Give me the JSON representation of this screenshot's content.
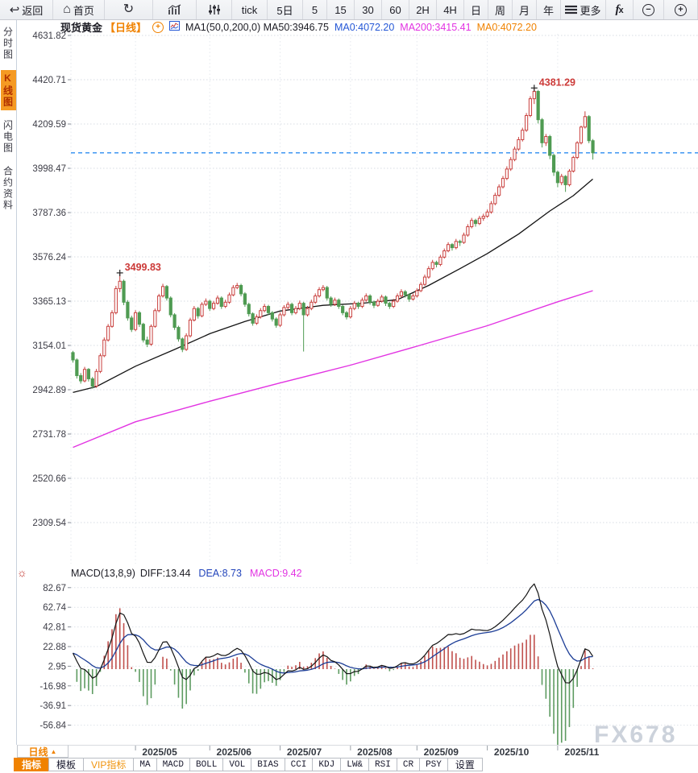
{
  "app": {
    "accent": "#f08200",
    "watermark": "FX678"
  },
  "toolbar": {
    "items": [
      {
        "name": "back-button",
        "icon": "back-icon",
        "label": "返回"
      },
      {
        "name": "home-button",
        "icon": "home-icon",
        "label": "首页"
      },
      {
        "name": "refresh-button",
        "icon": "refresh-icon",
        "label": ""
      },
      {
        "name": "kline-style-button",
        "icon": "kline-chart-icon",
        "label": ""
      },
      {
        "name": "indicator-adjust-button",
        "icon": "sliders-icon",
        "label": ""
      },
      {
        "name": "period-tick-button",
        "icon": "",
        "label": "tick"
      },
      {
        "name": "period-5d-button",
        "icon": "",
        "label": "5日"
      },
      {
        "name": "period-5-button",
        "icon": "",
        "label": "5"
      },
      {
        "name": "period-15-button",
        "icon": "",
        "label": "15"
      },
      {
        "name": "period-30-button",
        "icon": "",
        "label": "30"
      },
      {
        "name": "period-60-button",
        "icon": "",
        "label": "60"
      },
      {
        "name": "period-2h-button",
        "icon": "",
        "label": "2H"
      },
      {
        "name": "period-4h-button",
        "icon": "",
        "label": "4H"
      },
      {
        "name": "period-day-button",
        "icon": "",
        "label": "日"
      },
      {
        "name": "period-week-button",
        "icon": "",
        "label": "周"
      },
      {
        "name": "period-month-button",
        "icon": "",
        "label": "月"
      },
      {
        "name": "period-year-button",
        "icon": "",
        "label": "年"
      },
      {
        "name": "more-button",
        "icon": "more-icon",
        "label": "更多"
      },
      {
        "name": "formula-button",
        "icon": "fx-icon",
        "label": ""
      },
      {
        "name": "zoom-out-button",
        "icon": "zoom-out-icon",
        "label": ""
      },
      {
        "name": "zoom-in-button",
        "icon": "zoom-in-icon",
        "label": ""
      }
    ]
  },
  "sidebar": {
    "items": [
      {
        "label": "分时图",
        "active": false
      },
      {
        "label": "K线图",
        "active": true
      },
      {
        "label": "闪电图",
        "active": false
      },
      {
        "label": "合约资料",
        "active": false
      }
    ]
  },
  "chart_header": {
    "symbol": "现货黄金",
    "period": "【日线】",
    "plus": "+",
    "ma_config": "MA1(50,0,200,0)  MA50:3946.75",
    "ma0_blue": "MA0:4072.20",
    "ma200": "MA200:3415.41",
    "ma0_orange": "MA0:4072.20"
  },
  "macd_header": {
    "gear": "☼",
    "formula": "MACD(13,8,9)",
    "diff_label": "DIFF:13.44",
    "dea_label": "DEA:8.73",
    "macd_label": "MACD:9.42"
  },
  "bottom": {
    "period_label": "日线",
    "period_arrow": "▲",
    "tabs": [
      {
        "label": "指标",
        "variant": "active"
      },
      {
        "label": "模板",
        "variant": "cjk"
      },
      {
        "label": "VIP指标",
        "variant": "vip"
      },
      {
        "label": "MA",
        "variant": "mono"
      },
      {
        "label": "MACD",
        "variant": "mono"
      },
      {
        "label": "BOLL",
        "variant": "mono"
      },
      {
        "label": "VOL",
        "variant": "mono"
      },
      {
        "label": "BIAS",
        "variant": "mono"
      },
      {
        "label": "CCI",
        "variant": "mono"
      },
      {
        "label": "KDJ",
        "variant": "mono"
      },
      {
        "label": "LW&",
        "variant": "mono"
      },
      {
        "label": "RSI",
        "variant": "mono"
      },
      {
        "label": "CR",
        "variant": "mono"
      },
      {
        "label": "PSY",
        "variant": "mono"
      },
      {
        "label": "设置",
        "variant": "cjk"
      }
    ]
  },
  "chart_data": [
    {
      "type": "candlestick",
      "title": "现货黄金 日线",
      "y_ticks": [
        4631.82,
        4420.71,
        4209.59,
        3998.47,
        3787.36,
        3576.24,
        3365.13,
        3154.01,
        2942.89,
        2731.78,
        2520.66,
        2309.54
      ],
      "x_labels": [
        "2025/05",
        "2025/06",
        "2025/07",
        "2025/08",
        "2025/09",
        "2025/10",
        "2025/11"
      ],
      "month_start_indices": [
        16,
        35,
        53,
        71,
        88,
        106,
        124
      ],
      "current_price_line": 4072.2,
      "colors": {
        "up": "#c9403e",
        "down": "#4f9b52",
        "ma50": "#141414",
        "ma200": "#e233e2",
        "price_line": "#2d8cf0",
        "annotation": "#cc3a38"
      },
      "annotations": [
        {
          "text": "3499.83",
          "index": 12,
          "price": 3499.83
        },
        {
          "text": "4381.29",
          "index": 118,
          "price": 4381.29
        }
      ],
      "candles": [
        [
          3120,
          3128,
          3072,
          3085
        ],
        [
          3085,
          3092,
          2996,
          3010
        ],
        [
          3010,
          3022,
          2972,
          2985
        ],
        [
          2985,
          3052,
          2978,
          3040
        ],
        [
          3040,
          3046,
          2982,
          2995
        ],
        [
          2995,
          3004,
          2948,
          2960
        ],
        [
          2960,
          3042,
          2952,
          3030
        ],
        [
          3030,
          3116,
          3022,
          3105
        ],
        [
          3105,
          3192,
          3098,
          3180
        ],
        [
          3180,
          3256,
          3172,
          3245
        ],
        [
          3245,
          3322,
          3238,
          3310
        ],
        [
          3310,
          3438,
          3302,
          3425
        ],
        [
          3425,
          3499.83,
          3408,
          3460
        ],
        [
          3460,
          3468,
          3346,
          3360
        ],
        [
          3360,
          3370,
          3272,
          3285
        ],
        [
          3285,
          3296,
          3218,
          3230
        ],
        [
          3230,
          3322,
          3222,
          3310
        ],
        [
          3310,
          3318,
          3242,
          3255
        ],
        [
          3255,
          3262,
          3168,
          3180
        ],
        [
          3180,
          3196,
          3146,
          3160
        ],
        [
          3160,
          3254,
          3152,
          3245
        ],
        [
          3245,
          3330,
          3238,
          3320
        ],
        [
          3320,
          3400,
          3312,
          3390
        ],
        [
          3390,
          3448,
          3382,
          3435
        ],
        [
          3435,
          3442,
          3368,
          3380
        ],
        [
          3380,
          3388,
          3288,
          3300
        ],
        [
          3300,
          3308,
          3228,
          3240
        ],
        [
          3240,
          3248,
          3172,
          3185
        ],
        [
          3185,
          3192,
          3122,
          3135
        ],
        [
          3135,
          3212,
          3128,
          3200
        ],
        [
          3200,
          3286,
          3192,
          3275
        ],
        [
          3275,
          3342,
          3268,
          3330
        ],
        [
          3330,
          3338,
          3282,
          3295
        ],
        [
          3295,
          3360,
          3288,
          3350
        ],
        [
          3350,
          3378,
          3342,
          3365
        ],
        [
          3365,
          3372,
          3318,
          3330
        ],
        [
          3330,
          3366,
          3322,
          3355
        ],
        [
          3355,
          3392,
          3348,
          3380
        ],
        [
          3380,
          3388,
          3328,
          3340
        ],
        [
          3340,
          3372,
          3332,
          3360
        ],
        [
          3360,
          3406,
          3352,
          3395
        ],
        [
          3395,
          3442,
          3388,
          3430
        ],
        [
          3430,
          3452,
          3422,
          3440
        ],
        [
          3440,
          3448,
          3388,
          3400
        ],
        [
          3400,
          3408,
          3338,
          3350
        ],
        [
          3350,
          3358,
          3292,
          3305
        ],
        [
          3305,
          3312,
          3248,
          3260
        ],
        [
          3260,
          3302,
          3252,
          3290
        ],
        [
          3290,
          3332,
          3282,
          3320
        ],
        [
          3320,
          3352,
          3312,
          3340
        ],
        [
          3340,
          3348,
          3298,
          3310
        ],
        [
          3310,
          3318,
          3268,
          3280
        ],
        [
          3280,
          3288,
          3238,
          3250
        ],
        [
          3250,
          3312,
          3242,
          3300
        ],
        [
          3300,
          3346,
          3292,
          3335
        ],
        [
          3335,
          3362,
          3326,
          3350
        ],
        [
          3350,
          3358,
          3298,
          3310
        ],
        [
          3310,
          3342,
          3302,
          3330
        ],
        [
          3330,
          3368,
          3322,
          3355
        ],
        [
          3355,
          3362,
          3125,
          3300
        ],
        [
          3300,
          3342,
          3292,
          3330
        ],
        [
          3330,
          3372,
          3322,
          3360
        ],
        [
          3360,
          3402,
          3352,
          3390
        ],
        [
          3390,
          3432,
          3382,
          3420
        ],
        [
          3420,
          3442,
          3412,
          3430
        ],
        [
          3430,
          3438,
          3368,
          3380
        ],
        [
          3380,
          3388,
          3338,
          3350
        ],
        [
          3350,
          3382,
          3342,
          3370
        ],
        [
          3370,
          3378,
          3328,
          3340
        ],
        [
          3340,
          3348,
          3298,
          3310
        ],
        [
          3310,
          3318,
          3278,
          3290
        ],
        [
          3290,
          3342,
          3282,
          3330
        ],
        [
          3330,
          3366,
          3322,
          3355
        ],
        [
          3355,
          3362,
          3328,
          3340
        ],
        [
          3340,
          3382,
          3332,
          3370
        ],
        [
          3370,
          3402,
          3362,
          3390
        ],
        [
          3390,
          3398,
          3348,
          3360
        ],
        [
          3360,
          3368,
          3332,
          3345
        ],
        [
          3345,
          3376,
          3338,
          3365
        ],
        [
          3365,
          3396,
          3358,
          3385
        ],
        [
          3385,
          3392,
          3342,
          3355
        ],
        [
          3355,
          3362,
          3328,
          3340
        ],
        [
          3340,
          3376,
          3332,
          3365
        ],
        [
          3365,
          3402,
          3358,
          3390
        ],
        [
          3390,
          3422,
          3382,
          3410
        ],
        [
          3410,
          3418,
          3382,
          3395
        ],
        [
          3395,
          3402,
          3362,
          3375
        ],
        [
          3375,
          3402,
          3368,
          3390
        ],
        [
          3390,
          3426,
          3382,
          3415
        ],
        [
          3415,
          3456,
          3408,
          3445
        ],
        [
          3445,
          3492,
          3438,
          3480
        ],
        [
          3480,
          3532,
          3472,
          3520
        ],
        [
          3520,
          3562,
          3512,
          3550
        ],
        [
          3550,
          3558,
          3526,
          3540
        ],
        [
          3540,
          3586,
          3532,
          3575
        ],
        [
          3575,
          3616,
          3568,
          3605
        ],
        [
          3605,
          3646,
          3598,
          3635
        ],
        [
          3635,
          3642,
          3606,
          3620
        ],
        [
          3620,
          3662,
          3612,
          3650
        ],
        [
          3650,
          3658,
          3628,
          3645
        ],
        [
          3645,
          3692,
          3638,
          3680
        ],
        [
          3680,
          3732,
          3672,
          3720
        ],
        [
          3720,
          3762,
          3712,
          3750
        ],
        [
          3750,
          3758,
          3720,
          3735
        ],
        [
          3735,
          3772,
          3728,
          3760
        ],
        [
          3760,
          3782,
          3748,
          3770
        ],
        [
          3770,
          3802,
          3762,
          3790
        ],
        [
          3790,
          3842,
          3782,
          3830
        ],
        [
          3830,
          3882,
          3822,
          3870
        ],
        [
          3870,
          3922,
          3862,
          3910
        ],
        [
          3910,
          3962,
          3902,
          3950
        ],
        [
          3950,
          4008,
          3942,
          3995
        ],
        [
          3995,
          4052,
          3986,
          4040
        ],
        [
          4040,
          4102,
          4032,
          4090
        ],
        [
          4090,
          4148,
          4082,
          4135
        ],
        [
          4135,
          4192,
          4126,
          4180
        ],
        [
          4180,
          4262,
          4172,
          4250
        ],
        [
          4250,
          4342,
          4242,
          4330
        ],
        [
          4330,
          4381.29,
          4305,
          4365
        ],
        [
          4365,
          4372,
          4212,
          4230
        ],
        [
          4230,
          4238,
          4098,
          4120
        ],
        [
          4120,
          4162,
          4105,
          4150
        ],
        [
          4150,
          4158,
          4042,
          4060
        ],
        [
          4060,
          4068,
          3962,
          3980
        ],
        [
          3980,
          3988,
          3908,
          3930
        ],
        [
          3930,
          3972,
          3918,
          3960
        ],
        [
          3960,
          3966,
          3886,
          3920
        ],
        [
          3920,
          3995,
          3912,
          3985
        ],
        [
          3985,
          4058,
          3978,
          4050
        ],
        [
          4050,
          4128,
          4042,
          4120
        ],
        [
          4120,
          4202,
          4112,
          4195
        ],
        [
          4195,
          4270,
          4188,
          4245
        ],
        [
          4245,
          4252,
          4118,
          4130
        ],
        [
          4130,
          4138,
          4040,
          4072.2
        ]
      ],
      "ma50_anchors": [
        [
          0,
          2930
        ],
        [
          6,
          2958
        ],
        [
          16,
          3055
        ],
        [
          26,
          3135
        ],
        [
          35,
          3210
        ],
        [
          44,
          3268
        ],
        [
          53,
          3318
        ],
        [
          64,
          3345
        ],
        [
          74,
          3355
        ],
        [
          83,
          3372
        ],
        [
          91,
          3440
        ],
        [
          99,
          3520
        ],
        [
          106,
          3592
        ],
        [
          114,
          3685
        ],
        [
          122,
          3795
        ],
        [
          128,
          3868
        ],
        [
          133,
          3947
        ]
      ],
      "ma200_anchors": [
        [
          0,
          2668
        ],
        [
          16,
          2790
        ],
        [
          35,
          2888
        ],
        [
          53,
          2975
        ],
        [
          71,
          3060
        ],
        [
          88,
          3150
        ],
        [
          106,
          3248
        ],
        [
          124,
          3362
        ],
        [
          133,
          3415
        ]
      ]
    },
    {
      "type": "macd",
      "params": "(13,8,9)",
      "diff": 13.44,
      "dea": 8.73,
      "macd": 9.42,
      "y_ticks": [
        82.67,
        62.74,
        42.81,
        22.88,
        2.95,
        -16.98,
        -36.91,
        -56.84
      ],
      "colors": {
        "diff_line": "#141414",
        "dea_line": "#1c3d96",
        "hist_pos": "#c0504d",
        "hist_neg": "#5d9b60"
      }
    }
  ]
}
